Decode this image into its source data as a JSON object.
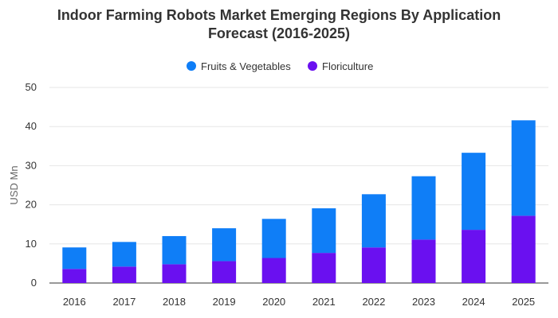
{
  "chart_data": {
    "type": "bar",
    "stacked": true,
    "title_lines": [
      "Indoor Farming Robots Market Emerging Regions By Application",
      "Forecast (2016-2025)"
    ],
    "xlabel": "",
    "ylabel": "USD Mn",
    "ylim": [
      0,
      50
    ],
    "yticks": [
      0,
      10,
      20,
      30,
      40,
      50
    ],
    "grid": true,
    "legend_position": "top-center",
    "categories": [
      "2016",
      "2017",
      "2018",
      "2019",
      "2020",
      "2021",
      "2022",
      "2023",
      "2024",
      "2025"
    ],
    "series": [
      {
        "name": "Fruits & Vegetables",
        "color": "#0f7ef7",
        "values": [
          5.5,
          6.3,
          7.2,
          8.4,
          10.0,
          11.4,
          13.6,
          16.2,
          19.7,
          24.4
        ]
      },
      {
        "name": "Floriculture",
        "color": "#6a10f0",
        "values": [
          3.6,
          4.2,
          4.8,
          5.6,
          6.4,
          7.7,
          9.1,
          11.1,
          13.6,
          17.2
        ]
      }
    ]
  }
}
